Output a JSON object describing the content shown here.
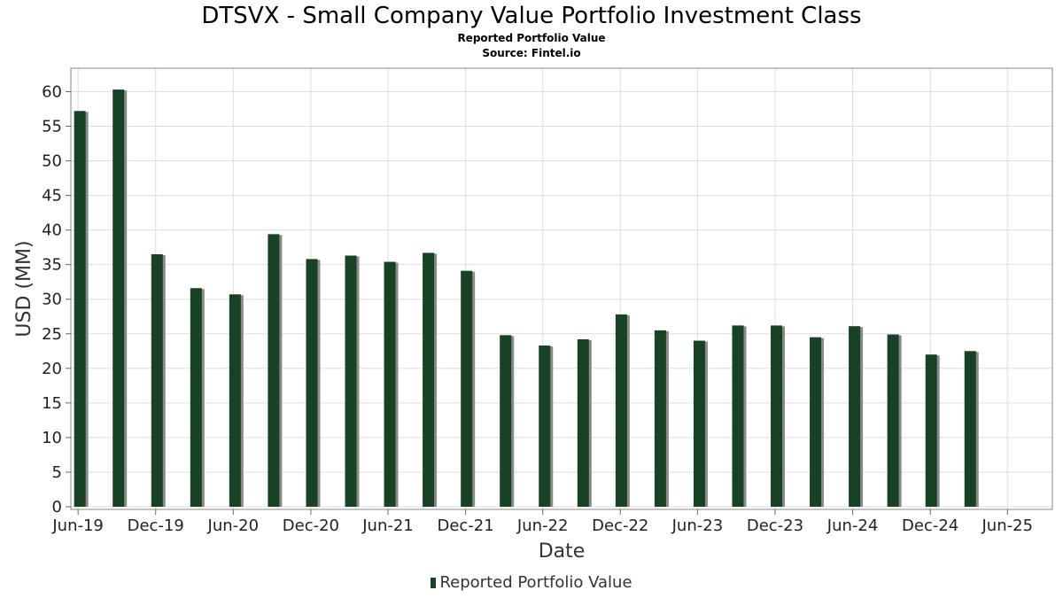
{
  "title": "DTSVX - Small Company Value Portfolio Investment Class",
  "subtitle": "Reported Portfolio Value",
  "source": "Source: Fintel.io",
  "colors": {
    "bar": "#174223",
    "bar_shadow": "#8a8a8a",
    "grid": "#dddddd",
    "frame": "#888888"
  },
  "chart_data": {
    "type": "bar",
    "xlabel": "Date",
    "ylabel": "USD (MM)",
    "ylim": [
      0,
      63
    ],
    "yticks": [
      0,
      5,
      10,
      15,
      20,
      25,
      30,
      35,
      40,
      45,
      50,
      55,
      60
    ],
    "xlim": [
      "2019-05-15",
      "2025-09-15"
    ],
    "xticks": [
      {
        "label": "Jun-19",
        "date": "2019-06-01"
      },
      {
        "label": "Dec-19",
        "date": "2019-12-01"
      },
      {
        "label": "Jun-20",
        "date": "2020-06-01"
      },
      {
        "label": "Dec-20",
        "date": "2020-12-01"
      },
      {
        "label": "Jun-21",
        "date": "2021-06-01"
      },
      {
        "label": "Dec-21",
        "date": "2021-12-01"
      },
      {
        "label": "Jun-22",
        "date": "2022-06-01"
      },
      {
        "label": "Dec-22",
        "date": "2022-12-01"
      },
      {
        "label": "Jun-23",
        "date": "2023-06-01"
      },
      {
        "label": "Dec-23",
        "date": "2023-12-01"
      },
      {
        "label": "Jun-24",
        "date": "2024-06-01"
      },
      {
        "label": "Dec-24",
        "date": "2024-12-01"
      },
      {
        "label": "Jun-25",
        "date": "2025-06-01"
      }
    ],
    "grid": true,
    "legend": "bottom-center",
    "series": [
      {
        "name": "Reported Portfolio Value",
        "points": [
          {
            "date": "2019-09-01",
            "value": 57.2
          },
          {
            "date": "2019-12-01",
            "value": 60.3
          },
          {
            "date": "2020-03-01",
            "value": 36.5
          },
          {
            "date": "2020-06-01",
            "value": 31.6
          },
          {
            "date": "2020-09-01",
            "value": 30.7
          },
          {
            "date": "2020-12-01",
            "value": 39.4
          },
          {
            "date": "2021-03-01",
            "value": 35.8
          },
          {
            "date": "2021-06-01",
            "value": 36.3
          },
          {
            "date": "2021-09-01",
            "value": 35.4
          },
          {
            "date": "2021-12-01",
            "value": 36.7
          },
          {
            "date": "2022-03-01",
            "value": 34.1
          },
          {
            "date": "2022-06-01",
            "value": 24.8
          },
          {
            "date": "2022-09-01",
            "value": 23.3
          },
          {
            "date": "2022-12-01",
            "value": 24.2
          },
          {
            "date": "2023-03-01",
            "value": 27.8
          },
          {
            "date": "2023-06-01",
            "value": 25.5
          },
          {
            "date": "2023-09-01",
            "value": 24.0
          },
          {
            "date": "2023-12-01",
            "value": 26.2
          },
          {
            "date": "2024-03-01",
            "value": 26.2
          },
          {
            "date": "2024-06-01",
            "value": 24.5
          },
          {
            "date": "2024-09-01",
            "value": 26.1
          },
          {
            "date": "2024-12-01",
            "value": 24.9
          },
          {
            "date": "2025-03-01",
            "value": 22.0
          },
          {
            "date": "2025-06-01",
            "value": 22.5
          }
        ]
      }
    ]
  }
}
